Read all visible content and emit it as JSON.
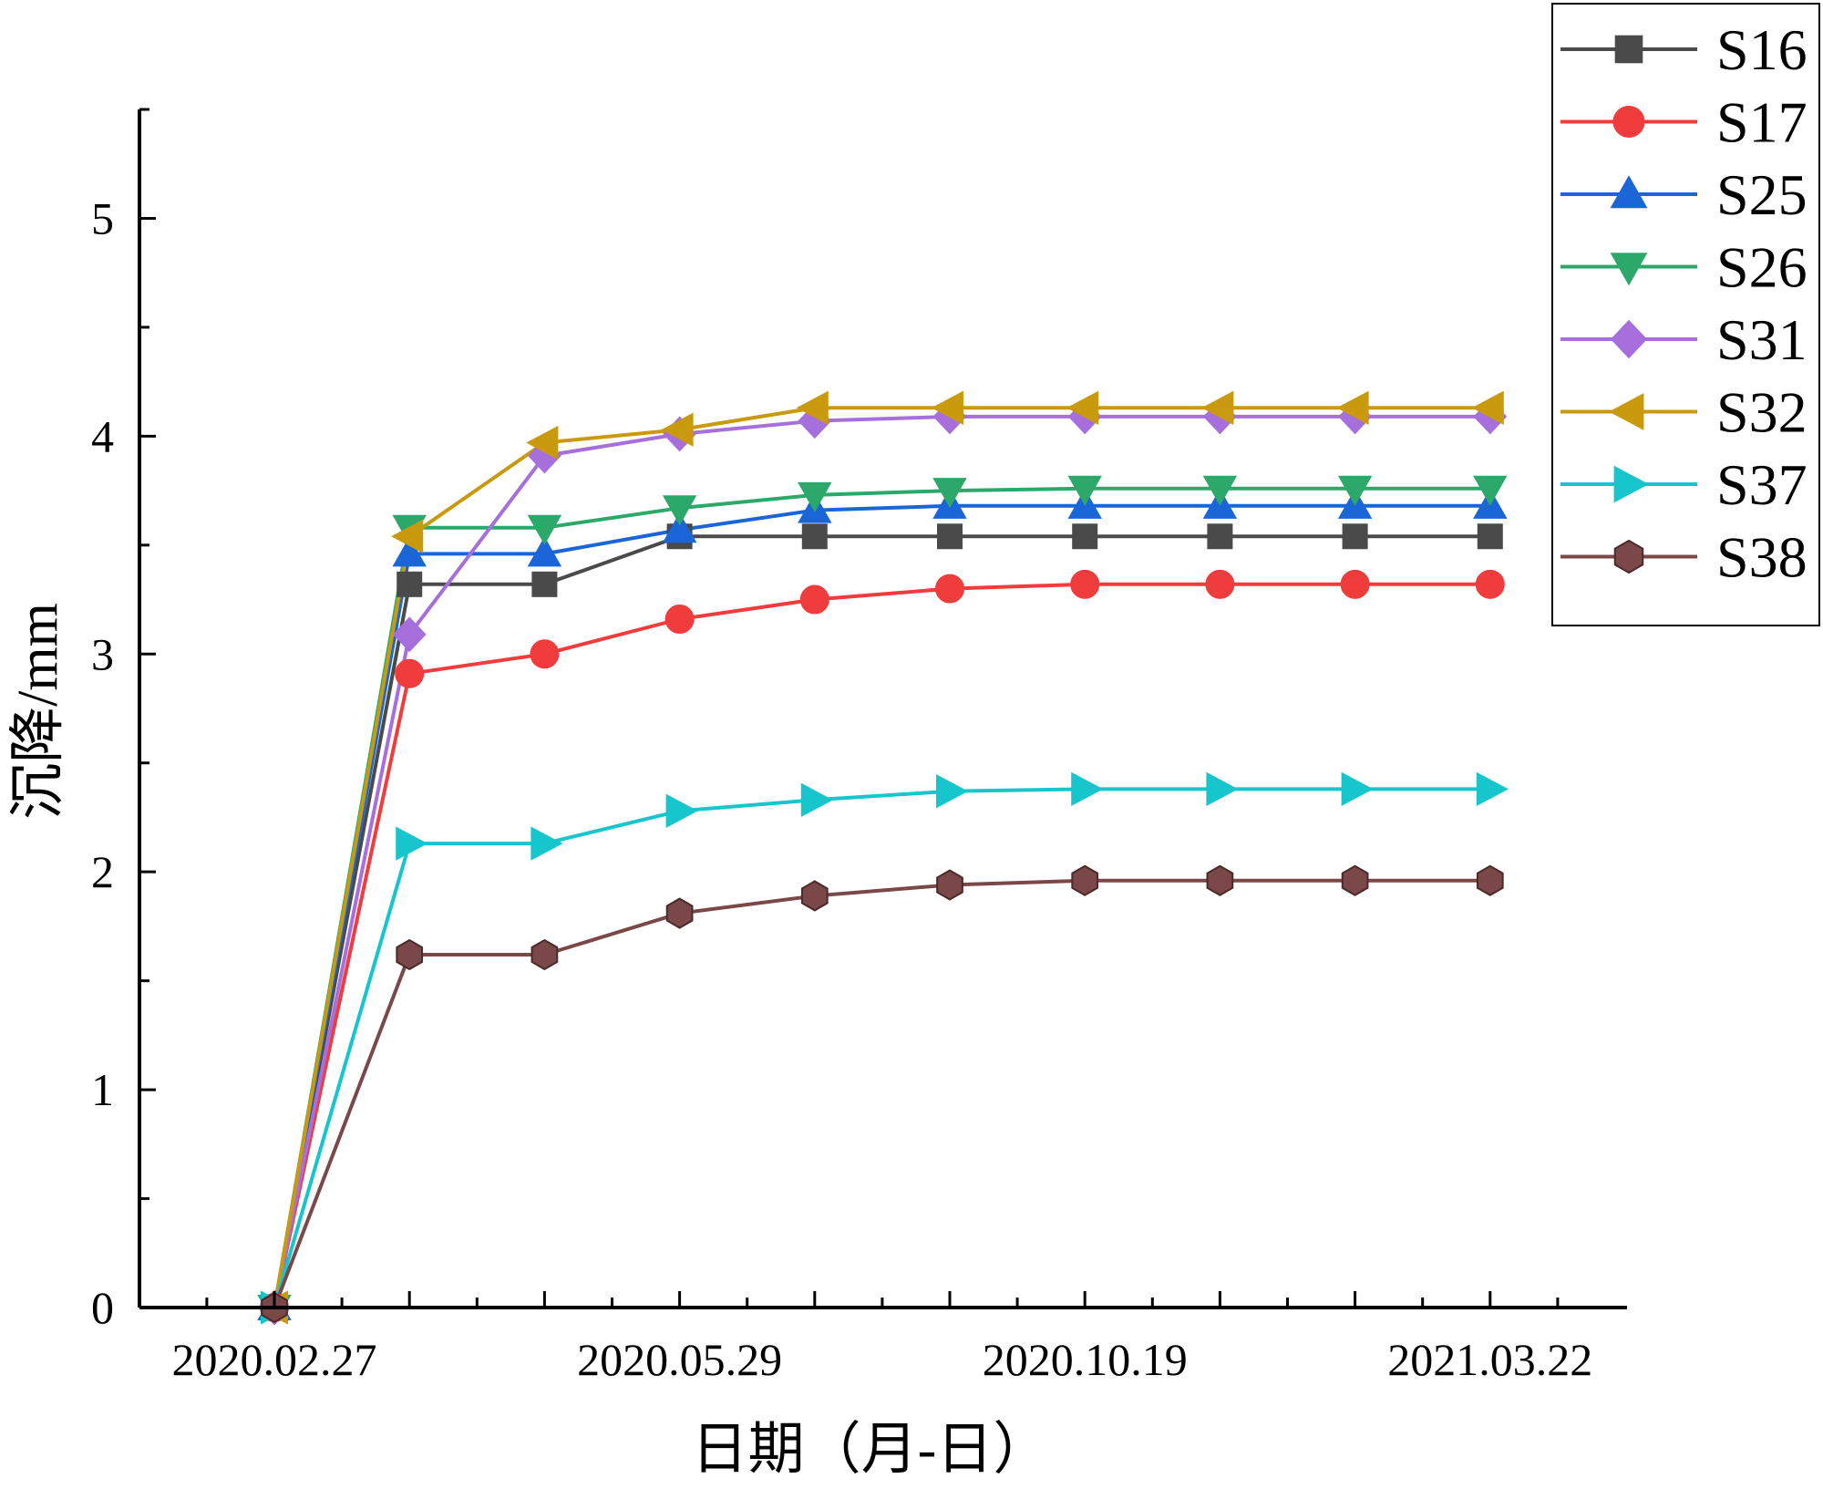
{
  "chart_data": {
    "type": "line",
    "title": "",
    "xlabel": "日期（月-日）",
    "ylabel": "沉降/mm",
    "x_tick_labels": [
      "2020.02.27",
      "2020.05.29",
      "2020.10.19",
      "2021.03.22"
    ],
    "y_tick_labels": [
      "0",
      "1",
      "2",
      "3",
      "4",
      "5"
    ],
    "ylim": [
      0,
      5.5
    ],
    "grid": false,
    "legend_position": "top-right",
    "series": [
      {
        "name": "S16",
        "color": "#4a4a4a",
        "marker": "square",
        "values": [
          0,
          3.32,
          3.32,
          3.54,
          3.54,
          3.54,
          3.54,
          3.54,
          3.54,
          3.54
        ]
      },
      {
        "name": "S17",
        "color": "#f03c3c",
        "marker": "circle",
        "values": [
          0,
          2.91,
          3.0,
          3.16,
          3.25,
          3.3,
          3.32,
          3.32,
          3.32,
          3.32
        ]
      },
      {
        "name": "S25",
        "color": "#1a66d9",
        "marker": "triangle-up",
        "values": [
          0,
          3.46,
          3.46,
          3.57,
          3.66,
          3.68,
          3.68,
          3.68,
          3.68,
          3.68
        ]
      },
      {
        "name": "S26",
        "color": "#2ba86a",
        "marker": "triangle-down",
        "values": [
          0,
          3.58,
          3.58,
          3.67,
          3.73,
          3.75,
          3.76,
          3.76,
          3.76,
          3.76
        ]
      },
      {
        "name": "S31",
        "color": "#a66fdb",
        "marker": "diamond",
        "values": [
          0,
          3.09,
          3.91,
          4.01,
          4.07,
          4.09,
          4.09,
          4.09,
          4.09,
          4.09
        ]
      },
      {
        "name": "S32",
        "color": "#c99a0e",
        "marker": "triangle-left",
        "values": [
          0,
          3.54,
          3.97,
          4.03,
          4.13,
          4.13,
          4.13,
          4.13,
          4.13,
          4.13
        ]
      },
      {
        "name": "S37",
        "color": "#16c6cc",
        "marker": "triangle-right",
        "values": [
          0,
          2.13,
          2.13,
          2.28,
          2.33,
          2.37,
          2.38,
          2.38,
          2.38,
          2.38
        ]
      },
      {
        "name": "S38",
        "color": "#7a4848",
        "marker": "hexagon",
        "values": [
          0,
          1.62,
          1.62,
          1.81,
          1.89,
          1.94,
          1.96,
          1.96,
          1.96,
          1.96
        ]
      }
    ]
  }
}
